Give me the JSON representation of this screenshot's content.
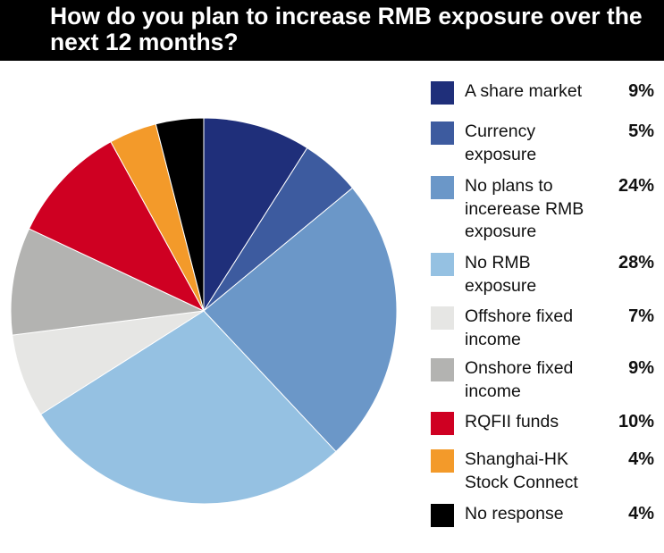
{
  "chart_data": {
    "type": "pie",
    "title": "How do you plan to increase RMB exposure over the next 12 months?",
    "legend_position": "right",
    "start_angle": "12 o'clock, clockwise",
    "slices": [
      {
        "label": "A share market",
        "value": 9,
        "display": "9%",
        "color": "#1f2f7a"
      },
      {
        "label": "Currency exposure",
        "value": 5,
        "display": "5%",
        "color": "#3d5b9f"
      },
      {
        "label": "No plans to incerease RMB exposure",
        "value": 24,
        "display": "24%",
        "color": "#6b97c8"
      },
      {
        "label": "No RMB exposure",
        "value": 28,
        "display": "28%",
        "color": "#95c1e2"
      },
      {
        "label": "Offshore fixed income",
        "value": 7,
        "display": "7%",
        "color": "#e6e6e4"
      },
      {
        "label": "Onshore fixed income",
        "value": 9,
        "display": "9%",
        "color": "#b3b3b1"
      },
      {
        "label": "RQFII funds",
        "value": 10,
        "display": "10%",
        "color": "#cf0022"
      },
      {
        "label": "Shanghai-HK Stock Connect",
        "value": 4,
        "display": "4%",
        "color": "#f39a2a"
      },
      {
        "label": "No response",
        "value": 4,
        "display": "4%",
        "color": "#000000"
      }
    ]
  }
}
